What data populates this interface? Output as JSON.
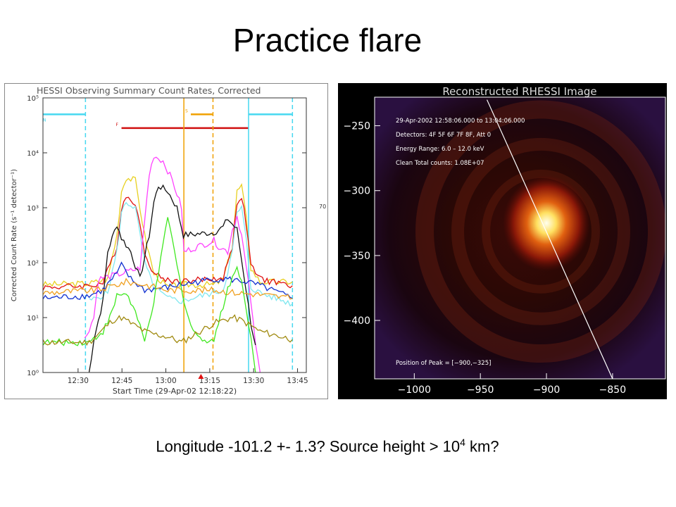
{
  "slide": {
    "title": "Practice flare",
    "caption_main": "Longitude -101.2 +- 1.3? Source height > 10",
    "caption_sup": "4",
    "caption_tail": " km?"
  },
  "chart_data": [
    {
      "type": "line",
      "title": "HESSI Observing Summary Count Rates, Corrected",
      "xlabel": "Start Time (29-Apr-02 12:18:22)",
      "ylabel": "Corrected Count Rate (s⁻¹ detector⁻¹)",
      "x_ticks": [
        "12:30",
        "12:45",
        "13:00",
        "13:15",
        "13:30",
        "13:45"
      ],
      "y_ticks": [
        "10⁰",
        "10¹",
        "10²",
        "10³",
        "10⁴",
        "10⁵"
      ],
      "ylog": true,
      "xlim": [
        18,
        75
      ],
      "ylim": [
        0,
        5
      ],
      "x_unit_note": "minutes after 12:00",
      "right_label": "70",
      "flags": [
        {
          "label": "N",
          "color": "#46d8f0",
          "segments": [
            [
              18,
              27.2
            ],
            [
              62.5,
              72
            ]
          ],
          "level": 4.7
        },
        {
          "label": "S",
          "color": "#f0a000",
          "segments": [
            [
              50,
              54.8
            ]
          ],
          "level": 4.7
        },
        {
          "label": "F",
          "color": "#d01010",
          "segments": [
            [
              35,
              62.5
            ]
          ],
          "level": 4.45
        }
      ],
      "vlines": [
        {
          "x": 27.2,
          "color": "#46d8f0",
          "dash": true
        },
        {
          "x": 72,
          "color": "#46d8f0",
          "dash": true
        },
        {
          "x": 48.5,
          "color": "#f0a000",
          "dash": false
        },
        {
          "x": 54.8,
          "color": "#f0a000",
          "dash": true
        },
        {
          "x": 62.5,
          "color": "#46d8f0",
          "dash": false
        }
      ],
      "series": [
        {
          "color": "#e8d020",
          "points": [
            [
              18,
              1.6
            ],
            [
              28,
              1.62
            ],
            [
              32,
              1.7
            ],
            [
              34,
              2.5
            ],
            [
              35,
              3.3
            ],
            [
              36,
              3.55
            ],
            [
              38,
              3.5
            ],
            [
              40,
              2.5
            ],
            [
              42,
              1.8
            ],
            [
              45,
              1.55
            ],
            [
              48,
              1.6
            ],
            [
              49,
              1.6
            ],
            [
              55,
              1.6
            ],
            [
              57,
              1.7
            ],
            [
              59,
              2.3
            ],
            [
              60,
              3.3
            ],
            [
              61,
              3.4
            ],
            [
              62,
              2.8
            ],
            [
              63,
              1.9
            ],
            [
              65,
              1.65
            ],
            [
              72,
              1.65
            ]
          ]
        },
        {
          "color": "#e01010",
          "points": [
            [
              18,
              1.55
            ],
            [
              28,
              1.58
            ],
            [
              31,
              1.63
            ],
            [
              34,
              2.3
            ],
            [
              35,
              3.0
            ],
            [
              36,
              3.2
            ],
            [
              38,
              3.1
            ],
            [
              40,
              2.2
            ],
            [
              42,
              1.8
            ],
            [
              45,
              1.68
            ],
            [
              48,
              1.66
            ],
            [
              57,
              1.72
            ],
            [
              59,
              2.3
            ],
            [
              60,
              3.1
            ],
            [
              61,
              3.2
            ],
            [
              62,
              2.7
            ],
            [
              63,
              1.95
            ],
            [
              65,
              1.7
            ],
            [
              72,
              1.58
            ]
          ]
        },
        {
          "color": "#80e8f0",
          "points": [
            [
              28,
              1.3
            ],
            [
              32,
              1.45
            ],
            [
              34,
              2.2
            ],
            [
              35,
              2.9
            ],
            [
              36,
              3.1
            ],
            [
              38,
              3.0
            ],
            [
              40,
              2.0
            ],
            [
              42,
              1.55
            ],
            [
              45,
              1.35
            ],
            [
              48,
              1.3
            ],
            [
              57,
              1.5
            ],
            [
              59,
              2.2
            ],
            [
              60,
              2.9
            ],
            [
              61,
              3.0
            ],
            [
              62,
              2.4
            ],
            [
              63,
              1.55
            ],
            [
              65,
              1.45
            ],
            [
              72,
              1.25
            ]
          ]
        },
        {
          "color": "#ff40ff",
          "points": [
            [
              27,
              0.6
            ],
            [
              29,
              1.0
            ],
            [
              30,
              1.7
            ],
            [
              35,
              1.8
            ],
            [
              39,
              1.9
            ],
            [
              41,
              3.6
            ],
            [
              42,
              3.95
            ],
            [
              44,
              3.85
            ],
            [
              46,
              3.5
            ],
            [
              48,
              3.0
            ],
            [
              48.5,
              2.2
            ],
            [
              55,
              2.4
            ],
            [
              56,
              2.3
            ],
            [
              58,
              2.2
            ],
            [
              59,
              2.6
            ],
            [
              60,
              2.85
            ],
            [
              61,
              2.5
            ],
            [
              62,
              1.9
            ],
            [
              63,
              1.3
            ],
            [
              64,
              0.5
            ],
            [
              65,
              0.0
            ]
          ]
        },
        {
          "color": "#101010",
          "points": [
            [
              28,
              0.0
            ],
            [
              29,
              0.6
            ],
            [
              31,
              1.3
            ],
            [
              32,
              2.2
            ],
            [
              34,
              2.7
            ],
            [
              35,
              2.45
            ],
            [
              37,
              2.2
            ],
            [
              39,
              1.7
            ],
            [
              41,
              2.5
            ],
            [
              42,
              3.1
            ],
            [
              43,
              3.4
            ],
            [
              45,
              3.3
            ],
            [
              47,
              3.0
            ],
            [
              48.4,
              2.5
            ],
            [
              55,
              2.55
            ],
            [
              57,
              2.65
            ],
            [
              58,
              2.8
            ],
            [
              60,
              2.6
            ],
            [
              62,
              1.5
            ],
            [
              63,
              0.9
            ],
            [
              64,
              0.5
            ]
          ]
        },
        {
          "color": "#1030d0",
          "points": [
            [
              18,
              1.35
            ],
            [
              28,
              1.4
            ],
            [
              31,
              1.5
            ],
            [
              34,
              1.8
            ],
            [
              35,
              1.95
            ],
            [
              37,
              1.7
            ],
            [
              40,
              1.5
            ],
            [
              45,
              1.55
            ],
            [
              48,
              1.6
            ],
            [
              55,
              1.7
            ],
            [
              58,
              1.7
            ],
            [
              62,
              1.65
            ],
            [
              65,
              1.58
            ],
            [
              72,
              1.35
            ]
          ]
        },
        {
          "color": "#f0a020",
          "points": [
            [
              18,
              1.45
            ],
            [
              30,
              1.5
            ],
            [
              34,
              1.6
            ],
            [
              36,
              1.65
            ],
            [
              40,
              1.6
            ],
            [
              45,
              1.5
            ],
            [
              48,
              1.5
            ],
            [
              55,
              1.5
            ],
            [
              60,
              1.45
            ],
            [
              65,
              1.42
            ],
            [
              72,
              1.35
            ]
          ]
        },
        {
          "color": "#40e820",
          "points": [
            [
              18,
              0.55
            ],
            [
              28,
              0.55
            ],
            [
              31,
              0.75
            ],
            [
              33,
              1.1
            ],
            [
              34,
              1.4
            ],
            [
              36,
              1.45
            ],
            [
              38,
              1.1
            ],
            [
              40,
              0.55
            ],
            [
              42,
              1.3
            ],
            [
              44,
              2.3
            ],
            [
              45,
              2.85
            ],
            [
              46,
              2.4
            ],
            [
              48,
              1.5
            ],
            [
              50,
              0.85
            ],
            [
              52,
              0.6
            ],
            [
              55,
              0.6
            ],
            [
              57,
              1.2
            ],
            [
              58,
              1.55
            ],
            [
              60,
              1.9
            ],
            [
              61,
              1.7
            ],
            [
              62,
              1.1
            ],
            [
              63,
              0.7
            ],
            [
              64,
              0.0
            ]
          ]
        },
        {
          "color": "#a08a10",
          "points": [
            [
              18,
              0.55
            ],
            [
              28,
              0.55
            ],
            [
              30,
              0.7
            ],
            [
              33,
              0.95
            ],
            [
              35,
              1.0
            ],
            [
              37,
              0.9
            ],
            [
              40,
              0.75
            ],
            [
              42,
              0.7
            ],
            [
              45,
              0.65
            ],
            [
              48,
              0.55
            ],
            [
              55,
              0.9
            ],
            [
              57,
              0.95
            ],
            [
              59,
              1.0
            ],
            [
              61,
              0.95
            ],
            [
              63,
              0.85
            ],
            [
              65,
              0.75
            ],
            [
              72,
              0.6
            ]
          ]
        }
      ]
    },
    {
      "type": "heatmap",
      "title": "Reconstructed RHESSI Image",
      "x_ticks": [
        "−1000",
        "−950",
        "−900",
        "−850"
      ],
      "y_ticks": [
        "−250",
        "−300",
        "−350",
        "−400"
      ],
      "xlim": [
        -1030,
        -810
      ],
      "ylim": [
        -445,
        -228
      ],
      "peak": [
        -900,
        -325
      ],
      "limb_line": [
        [
          -945,
          -230
        ],
        [
          -850,
          -445
        ]
      ],
      "info_lines": [
        "29-Apr-2002 12:58:06.000 to 13:04:06.000",
        "Detectors: 4F 5F 6F 7F 8F, Att 0",
        "Energy Range: 6.0 – 12.0 keV",
        "Clean    Total counts: 1.08E+07"
      ],
      "peak_label": "Position of Peak = [−900,−325]"
    }
  ]
}
